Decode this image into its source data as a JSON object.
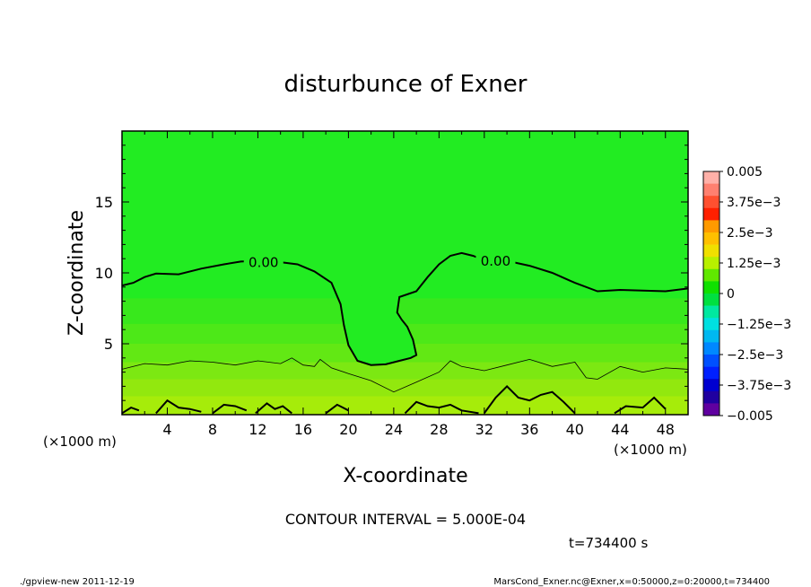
{
  "chart_data": {
    "type": "contour",
    "title": "disturbunce of Exner",
    "xlabel": "X-coordinate",
    "ylabel": "Z-coordinate",
    "x_unit_label": "(×1000 m)",
    "z_unit_label": "(×1000 m)",
    "x_ticks": [
      4,
      8,
      12,
      16,
      20,
      24,
      28,
      32,
      36,
      40,
      44,
      48
    ],
    "y_ticks": [
      5,
      10,
      15
    ],
    "xlim": [
      0,
      50
    ],
    "ylim": [
      0,
      20
    ],
    "contour_interval_text": "CONTOUR INTERVAL = 5.000E-04",
    "time_text": "t=734400 s",
    "contour_labels": [
      "0.00",
      "0.00"
    ],
    "zero_contour": [
      [
        0,
        9.1
      ],
      [
        1,
        9.3
      ],
      [
        2,
        9.7
      ],
      [
        3,
        9.95
      ],
      [
        5,
        9.9
      ],
      [
        7,
        10.3
      ],
      [
        9,
        10.6
      ],
      [
        10.5,
        10.8
      ],
      [
        12,
        10.85
      ],
      [
        14,
        10.75
      ],
      [
        15.5,
        10.6
      ],
      [
        17,
        10.1
      ],
      [
        18.5,
        9.3
      ],
      [
        19.3,
        7.8
      ],
      [
        19.6,
        6.3
      ],
      [
        20,
        4.9
      ],
      [
        20.8,
        3.8
      ],
      [
        22,
        3.5
      ],
      [
        23.3,
        3.55
      ],
      [
        24.5,
        3.8
      ],
      [
        25.5,
        4.0
      ],
      [
        26,
        4.2
      ],
      [
        25.7,
        5.3
      ],
      [
        25.2,
        6.2
      ],
      [
        24.7,
        6.7
      ],
      [
        24.3,
        7.2
      ],
      [
        24.5,
        8.3
      ],
      [
        26,
        8.7
      ],
      [
        27,
        9.7
      ],
      [
        28,
        10.6
      ],
      [
        29,
        11.2
      ],
      [
        30,
        11.4
      ],
      [
        31,
        11.2
      ],
      [
        32,
        10.9
      ],
      [
        34,
        10.85
      ],
      [
        36,
        10.5
      ],
      [
        38,
        10.0
      ],
      [
        40,
        9.3
      ],
      [
        42,
        8.7
      ],
      [
        44,
        8.8
      ],
      [
        46,
        8.75
      ],
      [
        48,
        8.7
      ],
      [
        50,
        8.9
      ]
    ],
    "thin_contour": [
      [
        0,
        3.2
      ],
      [
        2,
        3.6
      ],
      [
        4,
        3.5
      ],
      [
        6,
        3.8
      ],
      [
        8,
        3.7
      ],
      [
        10,
        3.5
      ],
      [
        12,
        3.8
      ],
      [
        14,
        3.6
      ],
      [
        15,
        4.0
      ],
      [
        16,
        3.5
      ],
      [
        17,
        3.4
      ],
      [
        17.5,
        3.9
      ],
      [
        18.5,
        3.3
      ],
      [
        20,
        2.9
      ],
      [
        22,
        2.4
      ],
      [
        24,
        1.6
      ],
      [
        26,
        2.3
      ],
      [
        28,
        3.0
      ],
      [
        29,
        3.8
      ],
      [
        30,
        3.4
      ],
      [
        32,
        3.1
      ],
      [
        34,
        3.5
      ],
      [
        36,
        3.9
      ],
      [
        38,
        3.4
      ],
      [
        40,
        3.7
      ],
      [
        41,
        2.6
      ],
      [
        42,
        2.5
      ],
      [
        44,
        3.4
      ],
      [
        46,
        3.0
      ],
      [
        48,
        3.3
      ],
      [
        50,
        3.2
      ]
    ],
    "near_ground_contour_segments": [
      [
        [
          0,
          0.1
        ],
        [
          0.8,
          0.5
        ],
        [
          1.5,
          0.3
        ]
      ],
      [
        [
          3,
          0.1
        ],
        [
          4,
          1.0
        ],
        [
          5,
          0.5
        ],
        [
          6,
          0.4
        ],
        [
          7,
          0.2
        ]
      ],
      [
        [
          8,
          0.1
        ],
        [
          9,
          0.7
        ],
        [
          10,
          0.6
        ],
        [
          11,
          0.3
        ]
      ],
      [
        [
          11.8,
          0.1
        ],
        [
          12.8,
          0.8
        ],
        [
          13.5,
          0.4
        ],
        [
          14.2,
          0.6
        ],
        [
          15,
          0.1
        ]
      ],
      [
        [
          18,
          0.1
        ],
        [
          19,
          0.7
        ],
        [
          20,
          0.3
        ]
      ],
      [
        [
          25,
          0.1
        ],
        [
          26,
          0.9
        ],
        [
          27,
          0.6
        ],
        [
          28,
          0.5
        ],
        [
          29,
          0.7
        ],
        [
          30,
          0.3
        ],
        [
          31.5,
          0.1
        ]
      ],
      [
        [
          32,
          0.1
        ],
        [
          33,
          1.2
        ],
        [
          34,
          2.0
        ],
        [
          35,
          1.2
        ],
        [
          36,
          1.0
        ],
        [
          37,
          1.4
        ],
        [
          38,
          1.6
        ],
        [
          39,
          0.9
        ],
        [
          40,
          0.1
        ]
      ],
      [
        [
          43.5,
          0.1
        ],
        [
          44.5,
          0.6
        ],
        [
          46,
          0.5
        ],
        [
          47,
          1.2
        ],
        [
          48,
          0.4
        ]
      ]
    ],
    "colorbar": {
      "tick_labels": [
        "0.005",
        "3.75e−3",
        "2.5e−3",
        "1.25e−3",
        "0",
        "−1.25e−3",
        "−2.5e−3",
        "−3.75e−3",
        "−0.005"
      ],
      "colors_top_to_bottom": [
        "#ffb0a8",
        "#ff8070",
        "#ff5030",
        "#ff2000",
        "#ff9a00",
        "#ffc000",
        "#f0e000",
        "#b8f000",
        "#60e800",
        "#10e000",
        "#00e040",
        "#00e8a0",
        "#00e0e0",
        "#00b8f0",
        "#0088ff",
        "#0050ff",
        "#0020ff",
        "#0000d0",
        "#2000a0",
        "#6000a0"
      ]
    },
    "bands": [
      {
        "color": "#22ec22",
        "z": 20
      },
      {
        "color": "#38e81c",
        "z": 8.2
      },
      {
        "color": "#4de818",
        "z": 6.4
      },
      {
        "color": "#62e814",
        "z": 5.0
      },
      {
        "color": "#7ce812",
        "z": 3.7
      },
      {
        "color": "#92e80e",
        "z": 2.5
      },
      {
        "color": "#a6ec0a",
        "z": 1.3
      }
    ]
  },
  "footer": {
    "left": "./gpview-new   2011-12-19",
    "right": "MarsCond_Exner.nc@Exner,x=0:50000,z=0:20000,t=734400"
  }
}
